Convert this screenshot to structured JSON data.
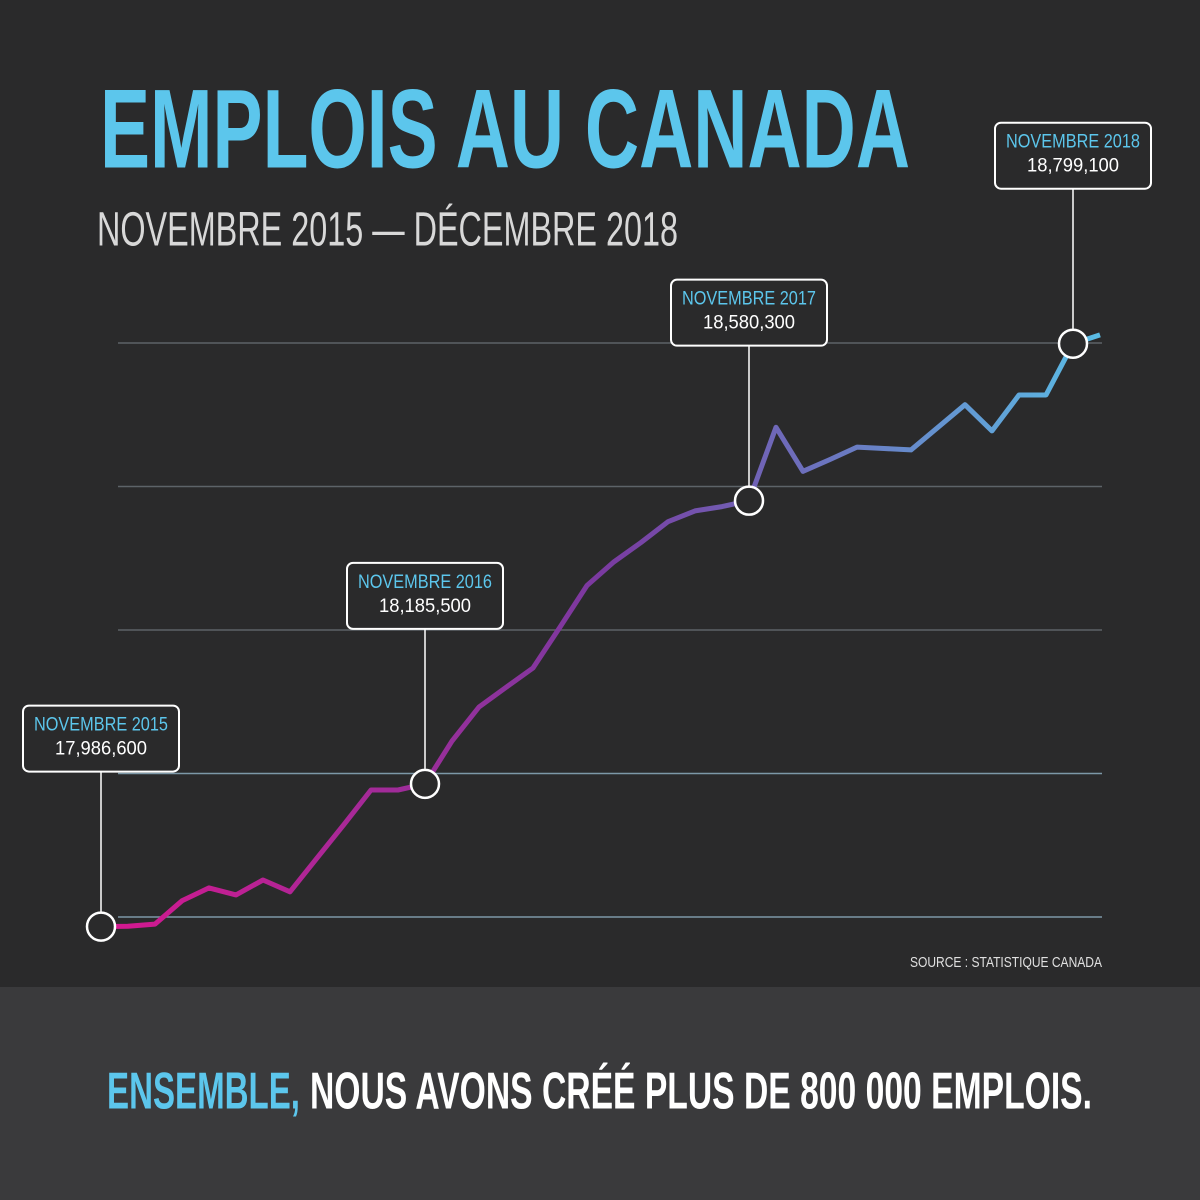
{
  "chart_data": {
    "type": "line",
    "title": "EMPLOIS AU CANADA",
    "subtitle": "NOVEMBRE 2015 — DÉCEMBRE 2018",
    "source": "SOURCE : STATISTIQUE CANADA",
    "categories": [
      null,
      null,
      null,
      null,
      null,
      null,
      null,
      null,
      null,
      null,
      null,
      null,
      null,
      null,
      null,
      null,
      null,
      null,
      null,
      null,
      null,
      null,
      null,
      null,
      null,
      null,
      null,
      null,
      null,
      null,
      null,
      null,
      null,
      null,
      null,
      null,
      null,
      null
    ],
    "series": [
      {
        "colors": [
          "#d6178f",
          "#7a3aa0",
          "#5abde6"
        ],
        "values": [
          17986600,
          17987000,
          17990000,
          18022500,
          18040500,
          18030800,
          18051500,
          18035000,
          18082000,
          18129000,
          18177000,
          18177000,
          18185500,
          18245100,
          18292700,
          18320000,
          18347000,
          18404000,
          18462000,
          18495000,
          18522000,
          18551000,
          18566000,
          18572000,
          18580300,
          18682500,
          18621200,
          18637600,
          18655000,
          18653000,
          18651000,
          18682500,
          18714000,
          18677500,
          18727600,
          18727600,
          18799100,
          18811400
        ]
      }
    ],
    "ylim": [
      17940000,
      18860000
    ],
    "yticks": [
      18000000,
      18200000,
      18400000,
      18600000,
      18800000
    ],
    "grid": true,
    "annotations": [
      {
        "text": "NOVEMBRE 2015",
        "value": 17986600,
        "value_label": "17,986,600"
      },
      {
        "text": "NOVEMBRE 2016",
        "value": 18185500,
        "value_label": "18,185,500"
      },
      {
        "text": "NOVEMBRE 2017",
        "value": 18580300,
        "value_label": "18,580,300"
      },
      {
        "text": "NOVEMBRE 2018",
        "value": 18799100,
        "value_label": "18,799,100"
      }
    ],
    "footer": {
      "highlight": "ENSEMBLE,",
      "text": "NOUS AVONS CRÉÉ PLUS DE 800 000 EMPLOIS."
    }
  }
}
